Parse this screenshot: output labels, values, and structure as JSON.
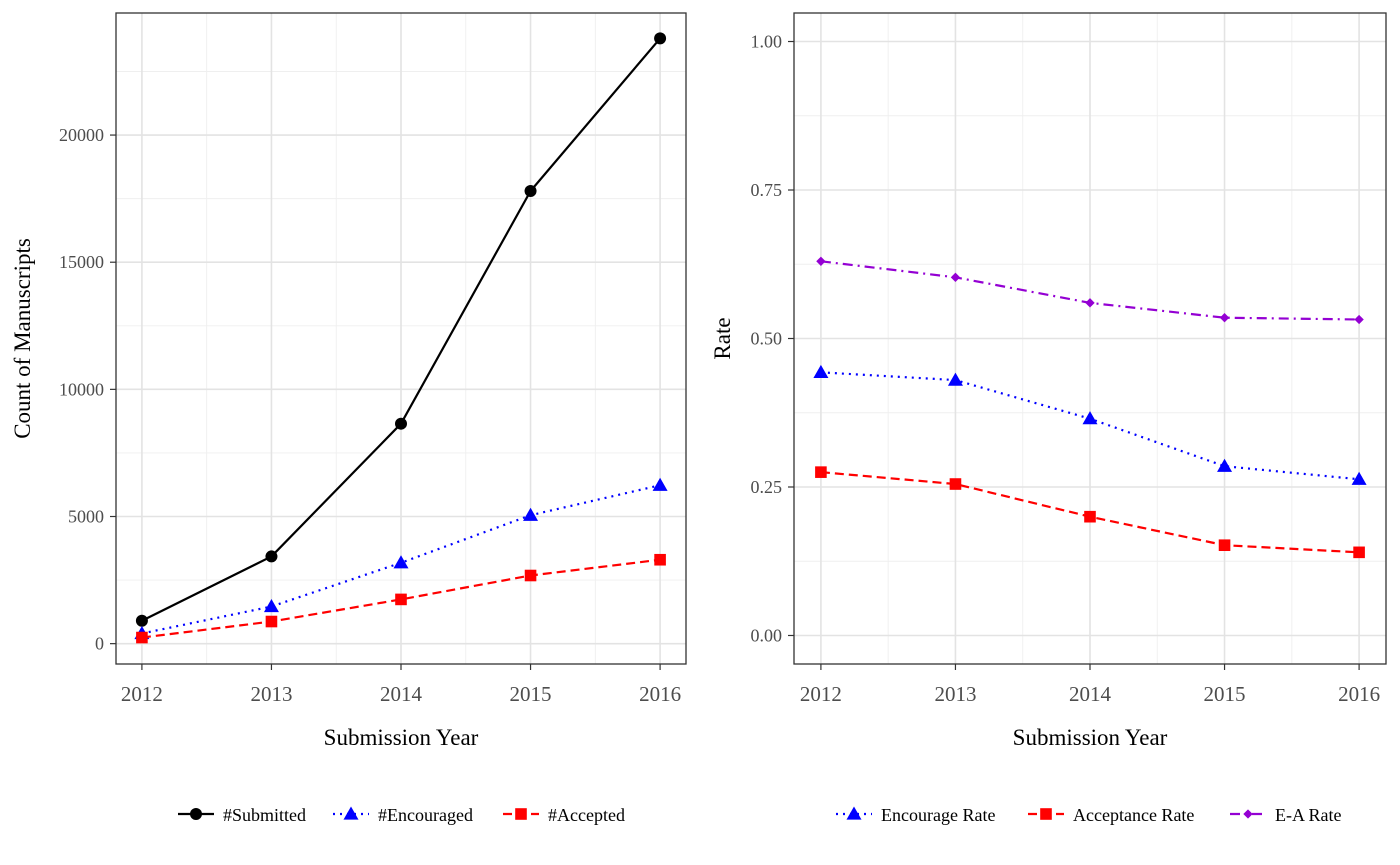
{
  "chart_data": [
    {
      "type": "line",
      "title": "",
      "xlabel": "Submission Year",
      "ylabel": "Count of Manuscripts",
      "x": [
        2012,
        2013,
        2014,
        2015,
        2016
      ],
      "x_tick_labels": [
        "2012",
        "2013",
        "2014",
        "2015",
        "2016"
      ],
      "ylim": [
        -800,
        24800
      ],
      "y_ticks": [
        0,
        5000,
        10000,
        15000,
        20000
      ],
      "y_tick_labels": [
        "0",
        "5000",
        "10000",
        "15000",
        "20000"
      ],
      "grid": true,
      "legend_position": "bottom",
      "series": [
        {
          "name": "#Submitted",
          "values": [
            900,
            3430,
            8650,
            17800,
            23800
          ],
          "color": "#000000",
          "marker": "circle",
          "dash": "solid"
        },
        {
          "name": "#Encouraged",
          "values": [
            400,
            1460,
            3180,
            5050,
            6230
          ],
          "color": "#0000ff",
          "marker": "triangle",
          "dash": "dotted"
        },
        {
          "name": "#Accepted",
          "values": [
            240,
            870,
            1740,
            2680,
            3300
          ],
          "color": "#ff0000",
          "marker": "square",
          "dash": "dashed"
        }
      ]
    },
    {
      "type": "line",
      "title": "",
      "xlabel": "Submission Year",
      "ylabel": "Rate",
      "x": [
        2012,
        2013,
        2014,
        2015,
        2016
      ],
      "x_tick_labels": [
        "2012",
        "2013",
        "2014",
        "2015",
        "2016"
      ],
      "ylim": [
        -0.048,
        1.048
      ],
      "y_ticks": [
        0,
        0.25,
        0.5,
        0.75,
        1
      ],
      "y_tick_labels": [
        "0.00",
        "0.25",
        "0.50",
        "0.75",
        "1.00"
      ],
      "grid": true,
      "legend_position": "bottom",
      "series": [
        {
          "name": "Encourage Rate",
          "values": [
            0.443,
            0.43,
            0.365,
            0.285,
            0.263
          ],
          "color": "#0000ff",
          "marker": "triangle",
          "dash": "dotted"
        },
        {
          "name": "Acceptance Rate",
          "values": [
            0.275,
            0.255,
            0.2,
            0.152,
            0.14
          ],
          "color": "#ff0000",
          "marker": "square",
          "dash": "dashed"
        },
        {
          "name": "E-A Rate",
          "values": [
            0.63,
            0.603,
            0.56,
            0.535,
            0.532
          ],
          "color": "#9400d3",
          "marker": "diamond",
          "dash": "dotdash"
        }
      ]
    }
  ]
}
